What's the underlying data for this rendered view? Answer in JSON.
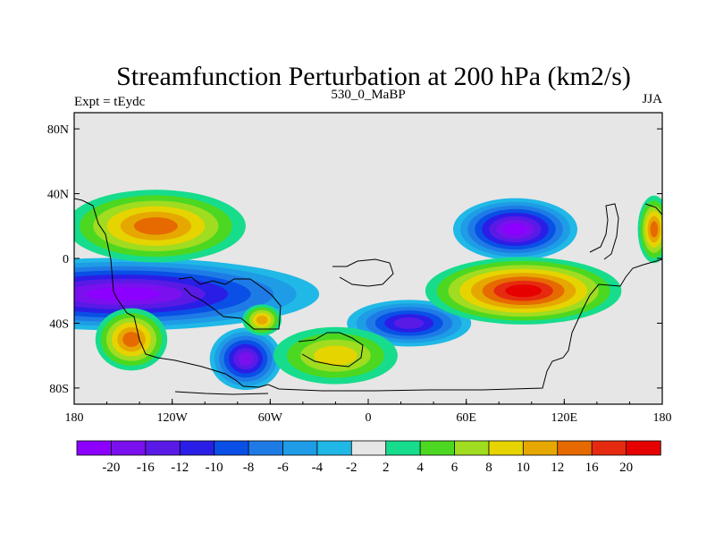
{
  "chart_data": {
    "type": "contour_map",
    "title": "Streamfunction Perturbation at 200 hPa (km2/s)",
    "left_label": "Expt = tEydc",
    "center_label": "530_0_MaBP",
    "right_label": "JJA",
    "projection": "cylindrical equidistant",
    "lon_range": [
      -180,
      180
    ],
    "lat_range": [
      -90,
      90
    ],
    "x_ticks": [
      {
        "value": -180,
        "label": "180"
      },
      {
        "value": -120,
        "label": "120W"
      },
      {
        "value": -60,
        "label": "60W"
      },
      {
        "value": 0,
        "label": "0"
      },
      {
        "value": 60,
        "label": "60E"
      },
      {
        "value": 120,
        "label": "120E"
      },
      {
        "value": 180,
        "label": "180"
      }
    ],
    "y_ticks": [
      {
        "value": 80,
        "label": "80N"
      },
      {
        "value": 40,
        "label": "40N"
      },
      {
        "value": 0,
        "label": "0"
      },
      {
        "value": -40,
        "label": "40S"
      },
      {
        "value": -80,
        "label": "80S"
      }
    ],
    "colorbar": {
      "levels": [
        -20,
        -16,
        -12,
        -10,
        -8,
        -6,
        -4,
        -2,
        2,
        4,
        6,
        8,
        10,
        12,
        16,
        20
      ],
      "labels": [
        "-20",
        "-16",
        "-12",
        "-10",
        "-8",
        "-6",
        "-4",
        "-2",
        "2",
        "4",
        "6",
        "8",
        "10",
        "12",
        "16",
        "20"
      ],
      "colors": [
        "#8c00ff",
        "#7a10ee",
        "#5a1ae6",
        "#2a1ee6",
        "#0a4fe6",
        "#1e7be6",
        "#1e9ce6",
        "#20b8e6",
        "#e6e6e6",
        "#16dc8c",
        "#4cd820",
        "#a0dc20",
        "#e6d400",
        "#e6a800",
        "#e66a00",
        "#e62a10",
        "#e60000"
      ]
    },
    "features": [
      {
        "name": "tropical southern negative belt",
        "sign": "negative",
        "center": {
          "lon": -150,
          "lat": -22
        },
        "peak": -22
      },
      {
        "name": "south pacific low",
        "sign": "negative",
        "center": {
          "lon": -75,
          "lat": -62
        },
        "peak": -18
      },
      {
        "name": "south indian low",
        "sign": "negative",
        "center": {
          "lon": 25,
          "lat": -40
        },
        "peak": -14
      },
      {
        "name": "asian low",
        "sign": "negative",
        "center": {
          "lon": 90,
          "lat": 18
        },
        "peak": -22
      },
      {
        "name": "north pacific high",
        "sign": "positive",
        "center": {
          "lon": -130,
          "lat": 20
        },
        "peak": 16
      },
      {
        "name": "indian ocean high",
        "sign": "positive",
        "center": {
          "lon": 95,
          "lat": -20
        },
        "peak": 24
      },
      {
        "name": "south pacific high",
        "sign": "positive",
        "center": {
          "lon": -145,
          "lat": -50
        },
        "peak": 16
      },
      {
        "name": "south atlantic high",
        "sign": "positive",
        "center": {
          "lon": -20,
          "lat": -60
        },
        "peak": 10
      },
      {
        "name": "andes high",
        "sign": "positive",
        "center": {
          "lon": -65,
          "lat": -38
        },
        "peak": 12
      },
      {
        "name": "dateline high",
        "sign": "positive",
        "center": {
          "lon": 175,
          "lat": 18
        },
        "peak": 14
      }
    ]
  }
}
